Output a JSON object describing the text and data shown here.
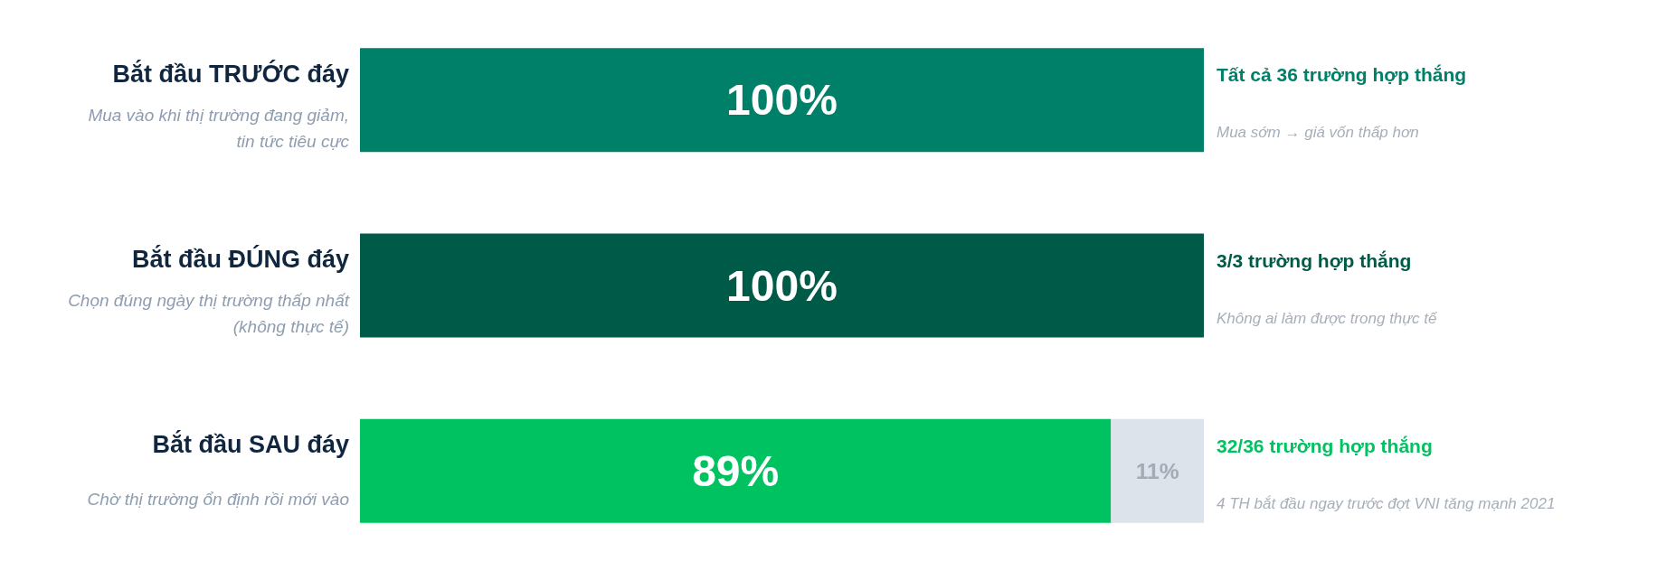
{
  "chart_data": {
    "type": "bar",
    "orientation": "horizontal",
    "stacked": true,
    "categories": [
      "Bắt đầu TRƯỚC đáy\nMua vào khi thị trường đang giảm,\ntin tức tiêu cực",
      "Bắt đầu ĐÚNG đáy\nChọn đúng ngày thị trường thấp nhất\n(không thực tế)",
      "Bắt đầu SAU đáy\nChờ thị trường ổn định rồi mới vào"
    ],
    "series": [
      {
        "colors": [
          "#008069",
          "#005a48",
          "#00c261"
        ],
        "values": [
          100,
          100,
          89
        ],
        "value_labels": [
          "100%",
          "100%",
          "89%"
        ]
      },
      {
        "color": "#dce3ea",
        "values": [
          null,
          null,
          11
        ],
        "value_labels": [
          null,
          null,
          "11%"
        ]
      }
    ],
    "xlim": [
      0,
      100
    ],
    "tick_labels": "y",
    "annotations": [
      "Tất cả 36 trường hợp thắng\nMua sớm → giá vốn thấp hơn",
      "3/3 trường hợp thắng\nKhông ai làm được trong thực tế",
      "32/36 trường hợp thắng\n4 TH bắt đầu ngay trước đợt VNI tăng mạnh 2021"
    ]
  }
}
